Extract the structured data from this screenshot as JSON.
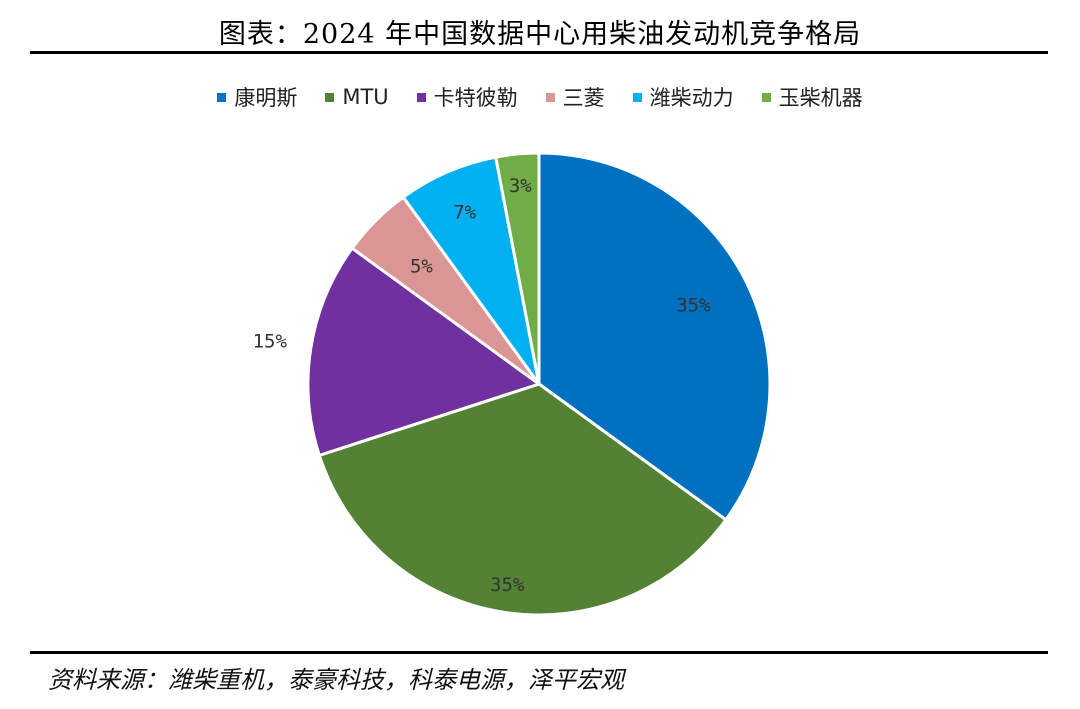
{
  "title": "图表：2024 年中国数据中心用柴油发动机竞争格局",
  "source": "资料来源：潍柴重机，泰豪科技，科泰电源，泽平宏观",
  "chart_data": {
    "type": "pie",
    "title": "图表：2024 年中国数据中心用柴油发动机竞争格局",
    "legend_position": "top",
    "slices": [
      {
        "name": "康明斯",
        "value": 35,
        "label": "35%",
        "color": "#0070C0"
      },
      {
        "name": "MTU",
        "value": 35,
        "label": "35%",
        "color": "#548235"
      },
      {
        "name": "卡特彼勒",
        "value": 15,
        "label": "15%",
        "color": "#7030A0"
      },
      {
        "name": "三菱",
        "value": 5,
        "label": "5%",
        "color": "#DA9694"
      },
      {
        "name": "潍柴动力",
        "value": 7,
        "label": "7%",
        "color": "#00B0F0"
      },
      {
        "name": "玉柴机器",
        "value": 3,
        "label": "3%",
        "color": "#70AD47"
      }
    ]
  }
}
